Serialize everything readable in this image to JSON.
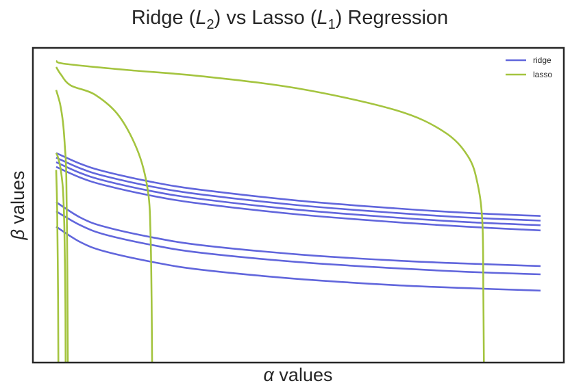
{
  "chart_data": {
    "type": "line",
    "title_parts": {
      "ridge": "Ridge (",
      "ridge_sym": "L",
      "ridge_sub": "2",
      "mid": ") vs Lasso (",
      "lasso_sym": "L",
      "lasso_sub": "1",
      "end": ") Regression"
    },
    "xlabel_parts": {
      "sym": "α",
      "text": " values"
    },
    "ylabel_parts": {
      "sym": "β",
      "text": " values"
    },
    "xticks": [],
    "yticks": [],
    "grid": false,
    "legend_placement": "top-right",
    "xlim": [
      0,
      1
    ],
    "ylim": [
      0,
      1
    ],
    "colors": {
      "ridge": "#6166dc",
      "lasso": "#a4c43f",
      "axes": "#262626"
    },
    "legend": [
      {
        "label": "ridge",
        "color": "#6166dc"
      },
      {
        "label": "lasso",
        "color": "#a4c43f"
      }
    ],
    "series": [
      {
        "group": "ridge",
        "x": [
          0.0,
          0.05,
          0.1,
          0.2,
          0.3,
          0.5,
          0.7,
          0.85,
          1.0
        ],
        "y": [
          0.68,
          0.645,
          0.62,
          0.585,
          0.56,
          0.525,
          0.5,
          0.485,
          0.475
        ]
      },
      {
        "group": "ridge",
        "x": [
          0.0,
          0.05,
          0.1,
          0.2,
          0.3,
          0.5,
          0.7,
          0.85,
          1.0
        ],
        "y": [
          0.665,
          0.63,
          0.605,
          0.57,
          0.545,
          0.51,
          0.485,
          0.47,
          0.46
        ]
      },
      {
        "group": "ridge",
        "x": [
          0.0,
          0.05,
          0.1,
          0.2,
          0.3,
          0.5,
          0.7,
          0.85,
          1.0
        ],
        "y": [
          0.65,
          0.615,
          0.59,
          0.555,
          0.53,
          0.495,
          0.47,
          0.455,
          0.445
        ]
      },
      {
        "group": "ridge",
        "x": [
          0.0,
          0.05,
          0.1,
          0.2,
          0.3,
          0.5,
          0.7,
          0.85,
          1.0
        ],
        "y": [
          0.635,
          0.6,
          0.575,
          0.54,
          0.515,
          0.48,
          0.455,
          0.44,
          0.428
        ]
      },
      {
        "group": "ridge",
        "x": [
          0.0,
          0.05,
          0.1,
          0.2,
          0.3,
          0.5,
          0.7,
          0.85,
          1.0
        ],
        "y": [
          0.52,
          0.47,
          0.44,
          0.405,
          0.38,
          0.35,
          0.33,
          0.32,
          0.312
        ]
      },
      {
        "group": "ridge",
        "x": [
          0.0,
          0.05,
          0.1,
          0.2,
          0.3,
          0.5,
          0.7,
          0.85,
          1.0
        ],
        "y": [
          0.49,
          0.445,
          0.415,
          0.38,
          0.355,
          0.325,
          0.305,
          0.293,
          0.285
        ]
      },
      {
        "group": "ridge",
        "x": [
          0.0,
          0.05,
          0.1,
          0.2,
          0.3,
          0.5,
          0.7,
          0.85,
          1.0
        ],
        "y": [
          0.44,
          0.39,
          0.36,
          0.325,
          0.3,
          0.27,
          0.25,
          0.24,
          0.232
        ]
      },
      {
        "group": "lasso",
        "x": [
          0.0,
          0.02,
          0.15,
          0.3,
          0.5,
          0.7,
          0.8,
          0.85,
          0.87,
          0.88,
          0.882,
          0.883
        ],
        "y": [
          0.98,
          0.97,
          0.95,
          0.93,
          0.89,
          0.82,
          0.75,
          0.67,
          0.58,
          0.45,
          0.2,
          0.0
        ]
      },
      {
        "group": "lasso",
        "x": [
          0.0,
          0.01,
          0.03,
          0.08,
          0.13,
          0.17,
          0.19,
          0.195,
          0.197,
          0.198
        ],
        "y": [
          0.96,
          0.935,
          0.9,
          0.87,
          0.8,
          0.68,
          0.55,
          0.4,
          0.2,
          0.0
        ]
      },
      {
        "group": "lasso",
        "x": [
          0.0,
          0.008,
          0.014,
          0.018,
          0.021,
          0.023,
          0.024
        ],
        "y": [
          0.885,
          0.84,
          0.78,
          0.7,
          0.6,
          0.3,
          0.0
        ]
      },
      {
        "group": "lasso",
        "x": [
          0.0,
          0.004,
          0.009,
          0.014,
          0.017,
          0.019,
          0.0195
        ],
        "y": [
          0.68,
          0.665,
          0.63,
          0.56,
          0.43,
          0.2,
          0.0
        ]
      },
      {
        "group": "lasso",
        "x": [
          0.0,
          0.002,
          0.004,
          0.0045
        ],
        "y": [
          0.625,
          0.5,
          0.2,
          0.0
        ]
      }
    ]
  }
}
